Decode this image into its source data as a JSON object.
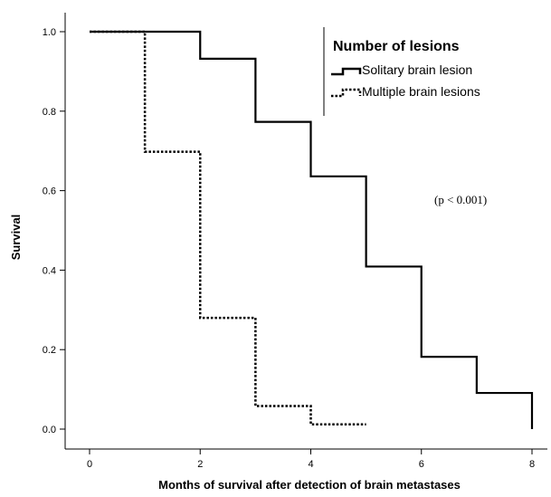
{
  "chart_data": {
    "type": "line",
    "step": true,
    "xlabel": "Months of survival after detection of brain metastases",
    "ylabel": "Survival",
    "xlim": [
      0,
      8
    ],
    "ylim": [
      0,
      1.0
    ],
    "x_ticks": [
      0,
      2,
      4,
      6,
      8
    ],
    "y_ticks": [
      0.0,
      0.2,
      0.4,
      0.6,
      0.8,
      1.0
    ],
    "x_tick_labels": [
      "0",
      "2",
      "4",
      "6",
      "8"
    ],
    "y_tick_labels": [
      "0.0",
      "0.2",
      "0.4",
      "0.6",
      "0.8",
      "1.0"
    ],
    "grid": false,
    "legend": {
      "title": "Number of lesions",
      "placement": "top-right"
    },
    "annotation": "(p < 0.001)",
    "series": [
      {
        "name": "Solitary brain lesion",
        "style": "solid",
        "color": "#000000",
        "points": [
          [
            0,
            1.0
          ],
          [
            2,
            0.932
          ],
          [
            3,
            0.773
          ],
          [
            4,
            0.636
          ],
          [
            5,
            0.409
          ],
          [
            6,
            0.182
          ],
          [
            7,
            0.091
          ],
          [
            8,
            0.0
          ]
        ]
      },
      {
        "name": "Multiple brain lesions",
        "style": "dotted",
        "color": "#000000",
        "points": [
          [
            0,
            1.0
          ],
          [
            1,
            0.698
          ],
          [
            2,
            0.28
          ],
          [
            3,
            0.058
          ],
          [
            4,
            0.012
          ],
          [
            5,
            0.0
          ]
        ]
      }
    ]
  }
}
